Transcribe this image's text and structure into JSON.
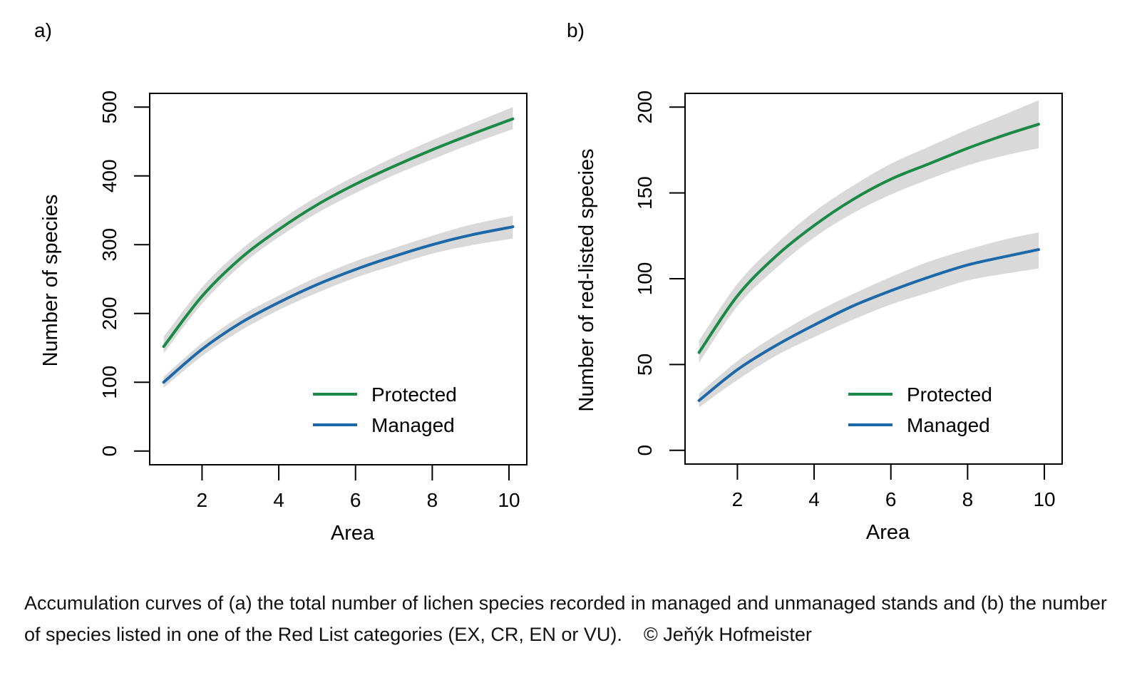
{
  "chart_data": [
    {
      "type": "line",
      "panel_label": "a)",
      "xlabel": "Area",
      "ylabel": "Number of species",
      "xlim": [
        1,
        10.1
      ],
      "ylim": [
        0,
        500
      ],
      "x_ticks": [
        2,
        4,
        6,
        8,
        10
      ],
      "y_ticks": [
        0,
        100,
        200,
        300,
        400,
        500
      ],
      "grid": false,
      "legend": {
        "placement": "bottom-right",
        "entries": [
          "Protected",
          "Managed"
        ]
      },
      "series": [
        {
          "name": "Protected",
          "color": "#1a8a46",
          "x": [
            1,
            2,
            3,
            4,
            5,
            6,
            7,
            8,
            9,
            10.1
          ],
          "y": [
            152,
            225,
            280,
            322,
            358,
            388,
            414,
            438,
            460,
            483
          ],
          "band_lower": [
            142,
            214,
            269,
            311,
            346,
            375,
            401,
            424,
            446,
            468
          ],
          "band_upper": [
            166,
            238,
            292,
            334,
            370,
            400,
            427,
            452,
            475,
            500
          ]
        },
        {
          "name": "Managed",
          "color": "#1c68a8",
          "x": [
            1,
            2,
            3,
            4,
            5,
            6,
            7,
            8,
            9,
            10.1
          ],
          "y": [
            100,
            148,
            186,
            216,
            242,
            264,
            283,
            300,
            314,
            326
          ],
          "band_lower": [
            92,
            138,
            175,
            205,
            230,
            252,
            270,
            287,
            299,
            309
          ],
          "band_upper": [
            108,
            157,
            196,
            226,
            253,
            276,
            295,
            313,
            329,
            342
          ]
        }
      ]
    },
    {
      "type": "line",
      "panel_label": "b)",
      "xlabel": "Area",
      "ylabel": "Number of red-listed species",
      "xlim": [
        1,
        10.1
      ],
      "ylim": [
        0,
        200
      ],
      "x_ticks": [
        2,
        4,
        6,
        8,
        10
      ],
      "y_ticks": [
        0,
        50,
        100,
        150,
        200
      ],
      "grid": false,
      "legend": {
        "placement": "bottom-right",
        "entries": [
          "Protected",
          "Managed"
        ]
      },
      "series": [
        {
          "name": "Protected",
          "color": "#1a8a46",
          "x": [
            1,
            2,
            3,
            4,
            5,
            6,
            7,
            8,
            9,
            9.85
          ],
          "y": [
            57,
            90,
            113,
            131,
            146,
            158,
            167,
            176,
            184,
            190
          ],
          "band_lower": [
            51,
            84,
            106,
            124,
            138,
            149,
            158,
            166,
            172,
            176
          ],
          "band_upper": [
            64,
            97,
            120,
            139,
            154,
            167,
            177,
            187,
            196,
            204
          ]
        },
        {
          "name": "Managed",
          "color": "#1c68a8",
          "x": [
            1,
            2,
            3,
            4,
            5,
            6,
            7,
            8,
            9,
            9.85
          ],
          "y": [
            29,
            47,
            61,
            73,
            84,
            93,
            101,
            108,
            113,
            117
          ],
          "band_lower": [
            25,
            41,
            55,
            66,
            76,
            85,
            92,
            99,
            103,
            106
          ],
          "band_upper": [
            33,
            52,
            67,
            80,
            91,
            101,
            110,
            117,
            123,
            127
          ]
        }
      ]
    }
  ],
  "caption": {
    "text": "Accumulation curves of (a) the total number of lichen species recorded in managed and unmanaged stands and (b) the number of species listed in one of the Red List categories (EX, CR, EN or VU).",
    "credit": "© Jeňýk Hofmeister"
  },
  "colors": {
    "protected": "#1a8a46",
    "managed": "#1c68a8",
    "band": "#d9d9d9"
  }
}
